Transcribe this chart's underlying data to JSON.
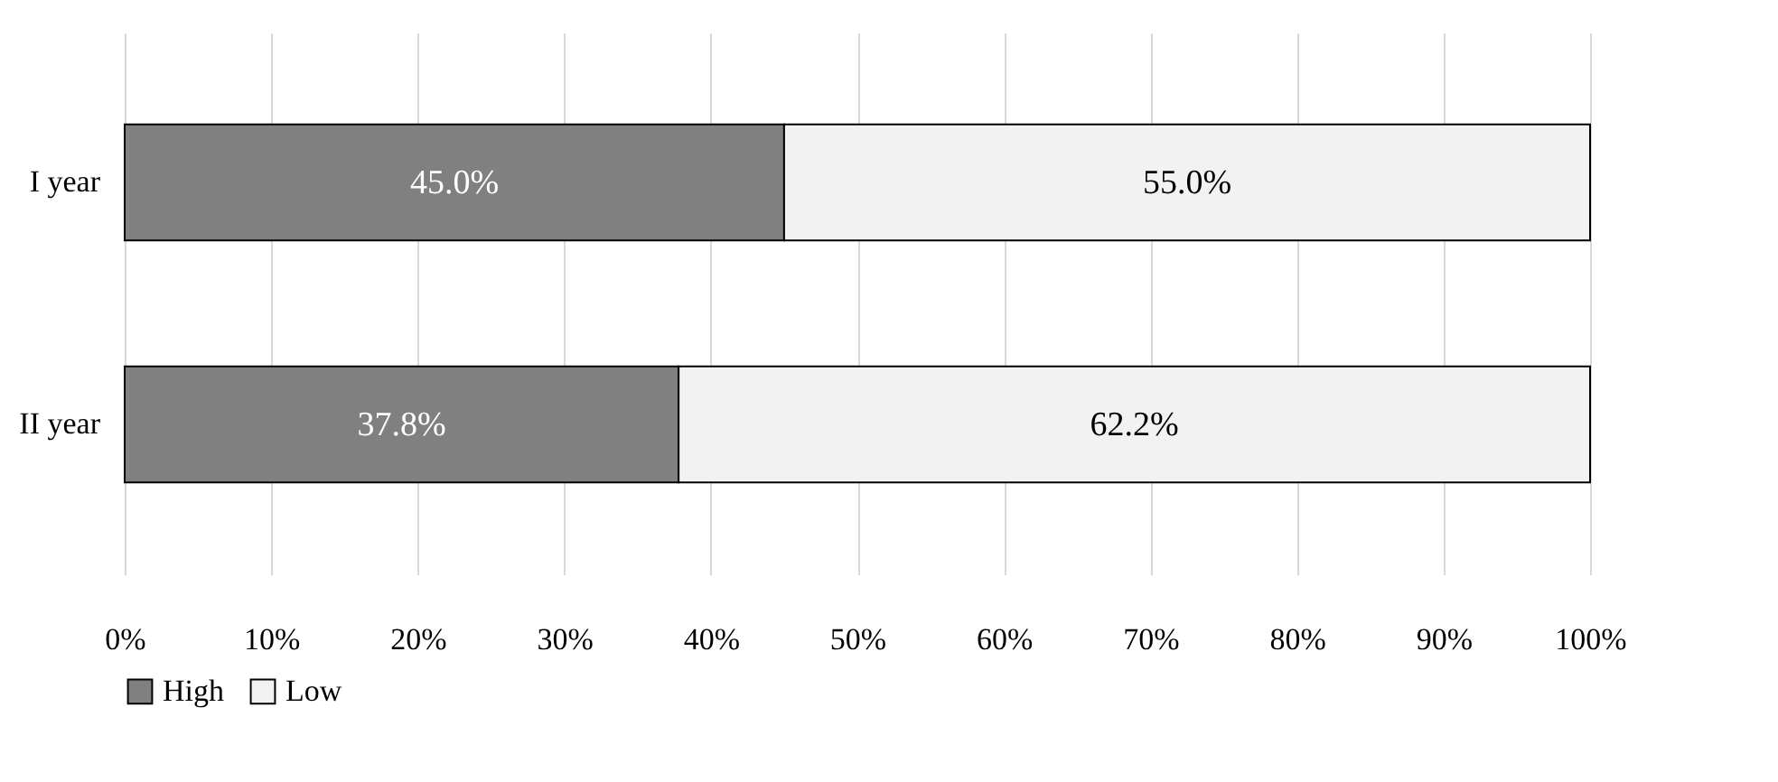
{
  "chart_data": {
    "type": "bar",
    "orientation": "horizontal",
    "stacked": true,
    "categories": [
      "I year",
      "II year"
    ],
    "series": [
      {
        "name": "High",
        "color": "#808080",
        "values": [
          45.0,
          37.8
        ],
        "value_labels": [
          "45.0%",
          "37.8%"
        ]
      },
      {
        "name": "Low",
        "color": "#f2f2f2",
        "values": [
          55.0,
          62.2
        ],
        "value_labels": [
          "55.0%",
          "62.2%"
        ]
      }
    ],
    "xlim": [
      0,
      100
    ],
    "xticks": [
      {
        "value": 0,
        "label": "0%"
      },
      {
        "value": 10,
        "label": "10%"
      },
      {
        "value": 20,
        "label": "20%"
      },
      {
        "value": 30,
        "label": "30%"
      },
      {
        "value": 40,
        "label": "40%"
      },
      {
        "value": 50,
        "label": "50%"
      },
      {
        "value": 60,
        "label": "60%"
      },
      {
        "value": 70,
        "label": "70%"
      },
      {
        "value": 80,
        "label": "80%"
      },
      {
        "value": 90,
        "label": "90%"
      },
      {
        "value": 100,
        "label": "100%"
      }
    ],
    "grid": "x",
    "legend": "bottom"
  }
}
